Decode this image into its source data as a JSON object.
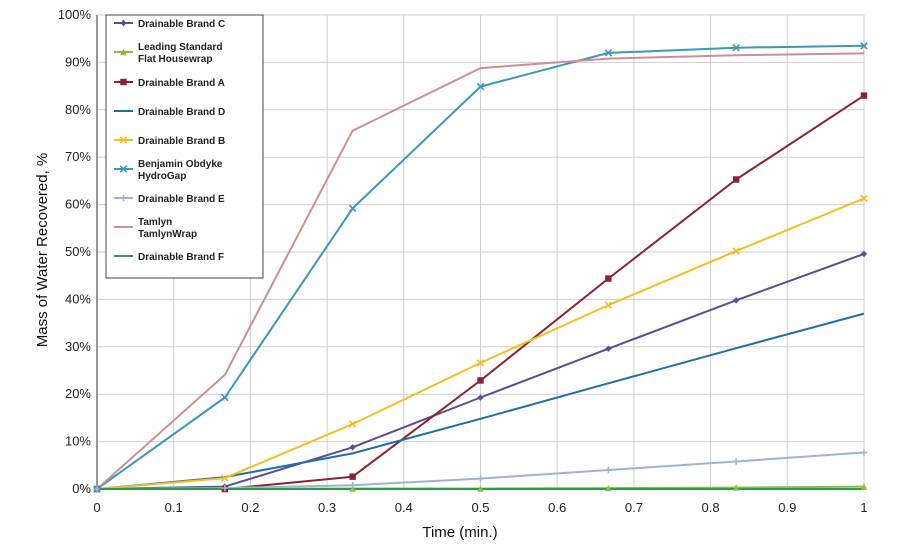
{
  "chart_data": {
    "type": "line",
    "xlabel": "Time (min.)",
    "ylabel": "Mass of Water Recovered, %",
    "xlim": [
      0,
      1
    ],
    "ylim": [
      0,
      100
    ],
    "x_ticks": [
      "0",
      "0.1",
      "0.2",
      "0.3",
      "0.4",
      "0.5",
      "0.6",
      "0.7",
      "0.8",
      "0.9",
      "1"
    ],
    "y_ticks": [
      "0%",
      "10%",
      "20%",
      "30%",
      "40%",
      "50%",
      "60%",
      "70%",
      "80%",
      "90%",
      "100%"
    ],
    "grid": true,
    "legend_position": "top-left",
    "series": [
      {
        "name": "Drainable Brand C",
        "color": "#5a4f91",
        "marker": "diamond",
        "x": [
          0,
          0.1667,
          0.3333,
          0.5,
          0.6667,
          0.8333,
          1
        ],
        "y": [
          0,
          0.5,
          8.8,
          19.3,
          29.6,
          39.8,
          49.6
        ]
      },
      {
        "name": "Leading Standard Flat Housewrap",
        "color": "#8fbc3c",
        "marker": "triangle",
        "x": [
          0,
          0.1667,
          0.3333,
          0.5,
          0.6667,
          0.8333,
          1
        ],
        "y": [
          0,
          0,
          0.1,
          0.1,
          0.2,
          0.3,
          0.5
        ]
      },
      {
        "name": "Drainable Brand A",
        "color": "#8b2232",
        "marker": "square",
        "x": [
          0,
          0.1667,
          0.3333,
          0.5,
          0.6667,
          0.8333,
          1
        ],
        "y": [
          0,
          0,
          2.6,
          22.9,
          44.4,
          65.3,
          83.0
        ]
      },
      {
        "name": "Drainable Brand D",
        "color": "#1f6fa8",
        "marker": "none",
        "x": [
          0,
          0.1667,
          0.3333,
          0.5,
          0.6667,
          0.8333,
          1
        ],
        "y": [
          0,
          2.5,
          7.5,
          14.8,
          22.3,
          29.7,
          37.0
        ]
      },
      {
        "name": "Drainable Brand B",
        "color": "#f2c01e",
        "marker": "x",
        "x": [
          0,
          0.1667,
          0.3333,
          0.5,
          0.6667,
          0.8333,
          1
        ],
        "y": [
          0,
          2.3,
          13.7,
          26.6,
          38.8,
          50.2,
          61.3
        ]
      },
      {
        "name": "Benjamin Obdyke HydroGap",
        "color": "#3a98b8",
        "marker": "x",
        "x": [
          0,
          0.1667,
          0.3333,
          0.5,
          0.6667,
          0.8333,
          1
        ],
        "y": [
          0,
          19.3,
          59.2,
          84.9,
          92.0,
          93.1,
          93.5
        ]
      },
      {
        "name": "Drainable Brand E",
        "color": "#9bb4d6",
        "marker": "plus",
        "x": [
          0,
          0.1667,
          0.3333,
          0.5,
          0.6667,
          0.8333,
          1
        ],
        "y": [
          0,
          0.2,
          0.8,
          2.2,
          4.0,
          5.8,
          7.7
        ]
      },
      {
        "name": "Tamlyn TamlynWrap",
        "color": "#cc8f95",
        "marker": "none",
        "x": [
          0,
          0.1667,
          0.3333,
          0.5,
          0.6667,
          0.8333,
          1
        ],
        "y": [
          0,
          24.1,
          75.6,
          88.8,
          90.8,
          91.5,
          91.9
        ]
      },
      {
        "name": "Drainable Brand F",
        "color": "#2e9b52",
        "marker": "none",
        "x": [
          0,
          0.1667,
          0.3333,
          0.5,
          0.6667,
          0.8333,
          1
        ],
        "y": [
          0,
          0,
          0,
          0,
          0,
          0,
          0
        ]
      }
    ],
    "legend": [
      [
        "Drainable Brand C"
      ],
      [
        "Leading Standard",
        "Flat Housewrap"
      ],
      [
        "Drainable Brand A"
      ],
      [
        "Drainable Brand D"
      ],
      [
        "Drainable Brand B"
      ],
      [
        "Benjamin Obdyke",
        "HydroGap"
      ],
      [
        "Drainable Brand E"
      ],
      [
        "Tamlyn",
        "TamlynWrap"
      ],
      [
        "Drainable Brand F"
      ]
    ]
  }
}
